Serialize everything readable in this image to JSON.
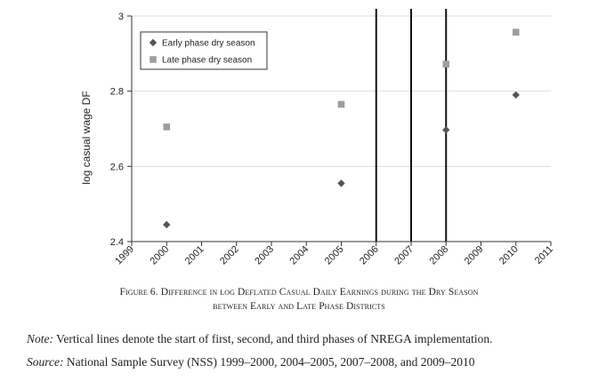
{
  "chart_data": {
    "type": "scatter",
    "ylabel": "log casual wage DF",
    "xlabel": "",
    "ylim": [
      2.4,
      3.0
    ],
    "yticks": [
      2.4,
      2.6,
      2.8,
      3.0
    ],
    "ytick_labels": [
      "2.4",
      "2.6",
      "2.8",
      "3"
    ],
    "xlim": [
      1999,
      2011
    ],
    "xticks": [
      1999,
      2000,
      2001,
      2002,
      2003,
      2004,
      2005,
      2006,
      2007,
      2008,
      2009,
      2010,
      2011
    ],
    "xtick_labels": [
      "1999",
      "2000",
      "2001",
      "2002",
      "2003",
      "2004",
      "2005",
      "2006",
      "2007",
      "2008",
      "2009",
      "2010",
      "2011"
    ],
    "grid": true,
    "legend_position": "top-left",
    "vlines": [
      2006,
      2007,
      2008
    ],
    "series": [
      {
        "name": "Early phase dry season",
        "marker": "diamond",
        "color": "#555555",
        "x": [
          2000,
          2005,
          2008,
          2010
        ],
        "y": [
          2.445,
          2.555,
          2.697,
          2.79
        ]
      },
      {
        "name": "Late phase dry season",
        "marker": "square",
        "color": "#9e9e9e",
        "x": [
          2000,
          2005,
          2008,
          2010
        ],
        "y": [
          2.705,
          2.765,
          2.872,
          2.957
        ]
      }
    ]
  },
  "caption": {
    "line1": "Figure 6. Difference in log Deflated Casual Daily Earnings during the Dry Season",
    "line2": "between Early and Late Phase Districts"
  },
  "note": {
    "label": "Note:",
    "text": " Vertical lines denote the start of first, second, and third phases of NREGA implementation."
  },
  "source": {
    "label": "Source:",
    "text": " National Sample Survey (NSS) 1999–2000, 2004–2005, 2007–2008, and 2009–2010"
  }
}
